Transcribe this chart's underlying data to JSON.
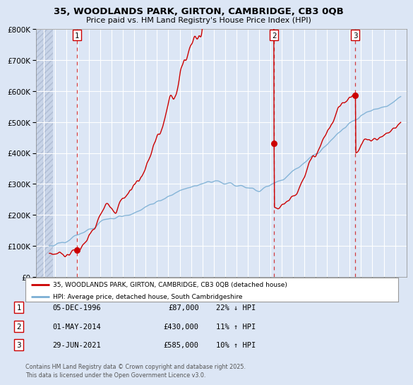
{
  "title_line1": "35, WOODLANDS PARK, GIRTON, CAMBRIDGE, CB3 0QB",
  "title_line2": "Price paid vs. HM Land Registry's House Price Index (HPI)",
  "background_color": "#dce6f5",
  "plot_bg_color": "#dce6f5",
  "grid_color": "#ffffff",
  "sale_dates_num": [
    1996.93,
    2014.33,
    2021.49
  ],
  "sale_prices": [
    87000,
    430000,
    585000
  ],
  "sale_labels": [
    "1",
    "2",
    "3"
  ],
  "sale_annotations": [
    [
      "1",
      "05-DEC-1996",
      "£87,000",
      "22% ↓ HPI"
    ],
    [
      "2",
      "01-MAY-2014",
      "£430,000",
      "11% ↑ HPI"
    ],
    [
      "3",
      "29-JUN-2021",
      "£585,000",
      "10% ↑ HPI"
    ]
  ],
  "legend_label_red": "35, WOODLANDS PARK, GIRTON, CAMBRIDGE, CB3 0QB (detached house)",
  "legend_label_blue": "HPI: Average price, detached house, South Cambridgeshire",
  "footer": "Contains HM Land Registry data © Crown copyright and database right 2025.\nThis data is licensed under the Open Government Licence v3.0.",
  "red_color": "#cc0000",
  "blue_color": "#7bafd4",
  "vline_color": "#cc0000",
  "ylim_max": 800000,
  "xlim_min": 1993.3,
  "xlim_max": 2026.0
}
